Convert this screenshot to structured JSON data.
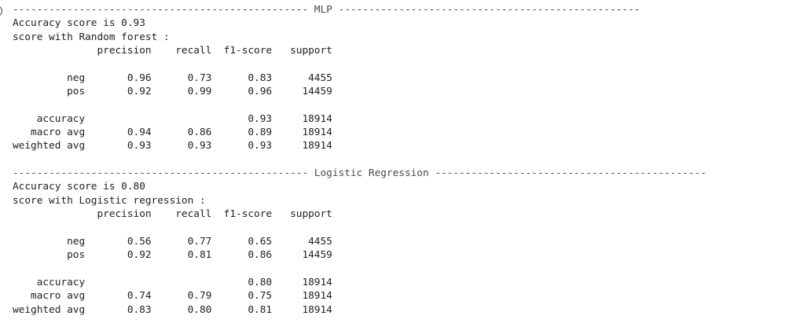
{
  "cell_output": {
    "lines": [
      "------------------------------------------------- MLP --------------------------------------------------",
      "Accuracy score is 0.93",
      "score with Random forest :",
      "              precision    recall  f1-score   support",
      "",
      "         neg       0.96      0.73      0.83      4455",
      "         pos       0.92      0.99      0.96     14459",
      "",
      "    accuracy                           0.93     18914",
      "   macro avg       0.94      0.86      0.89     18914",
      "weighted avg       0.93      0.93      0.93     18914",
      "",
      "------------------------------------------------- Logistic Regression ---------------------------------------------",
      "Accuracy score is 0.80",
      "score with Logistic regression :",
      "              precision    recall  f1-score   support",
      "",
      "         neg       0.56      0.77      0.65      4455",
      "         pos       0.92      0.81      0.86     14459",
      "",
      "    accuracy                           0.80     18914",
      "   macro avg       0.74      0.79      0.75     18914",
      "weighted avg       0.83      0.80      0.81     18914"
    ]
  }
}
